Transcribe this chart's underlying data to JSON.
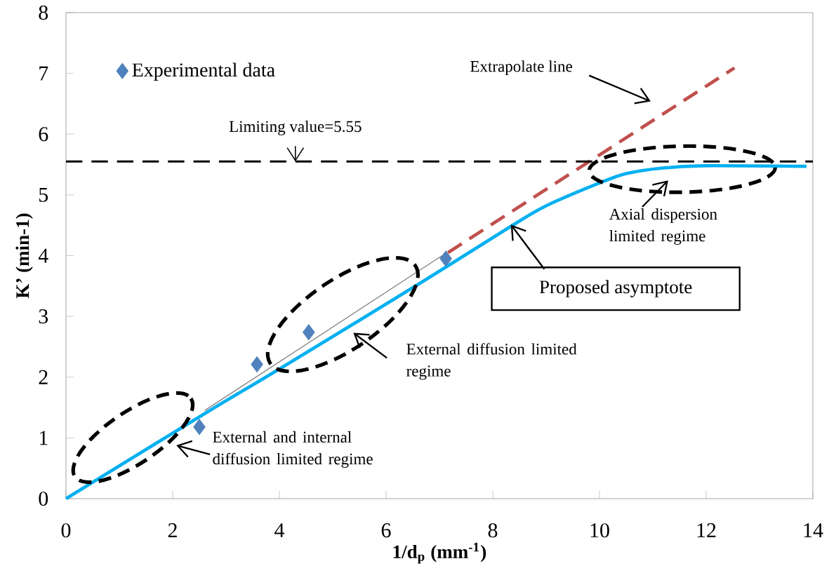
{
  "chart_data": {
    "type": "line",
    "xlabel": "1/d$_{p}$ (mm$^{-1}$)",
    "ylabel": "K’ (min-1)",
    "xlim": [
      0,
      14
    ],
    "xticks": [
      0,
      2,
      4,
      6,
      8,
      10,
      12,
      14
    ],
    "ylim": [
      0,
      8
    ],
    "yticks": [
      0,
      1,
      2,
      3,
      4,
      5,
      6,
      7,
      8
    ],
    "legend": "top left",
    "series": [
      {
        "name": "Experimental data",
        "type": "scatter",
        "marker": "diamond",
        "color": "#4f81bd",
        "x": [
          2.5,
          3.58,
          4.55,
          7.12
        ],
        "values": [
          1.18,
          2.21,
          2.74,
          3.95
        ]
      },
      {
        "color": "#7f7f7f",
        "x": [
          2.6,
          7.05
        ],
        "values": [
          1.45,
          4.0
        ]
      },
      {
        "type": "line",
        "line_style": "dashed",
        "color": "#c0504d",
        "x": [
          7.16,
          12.53
        ],
        "values": [
          4.05,
          7.09
        ]
      },
      {
        "color": "#00b0f0",
        "x": [
          0,
          2.6,
          4.03,
          6.68,
          8.37,
          9,
          10.04,
          10.5,
          11.16,
          11.96,
          13.88
        ],
        "values": [
          0,
          1.4,
          2.15,
          3.57,
          4.5,
          4.82,
          5.21,
          5.35,
          5.44,
          5.48,
          5.47
        ]
      }
    ],
    "ref_lines": [
      {
        "axis": "y",
        "value": 5.55,
        "label": "Limiting value=5.55",
        "color": "#000000",
        "line_style": "dashed"
      }
    ],
    "annotations": [
      "Extrapolate line",
      {
        "text": "Proposed asymptote",
        "x": 8.37,
        "y": 4.5
      },
      "External and internal diffusion limited regime",
      "External diffusion limited regime",
      "Axial dispersion limited regime"
    ]
  }
}
